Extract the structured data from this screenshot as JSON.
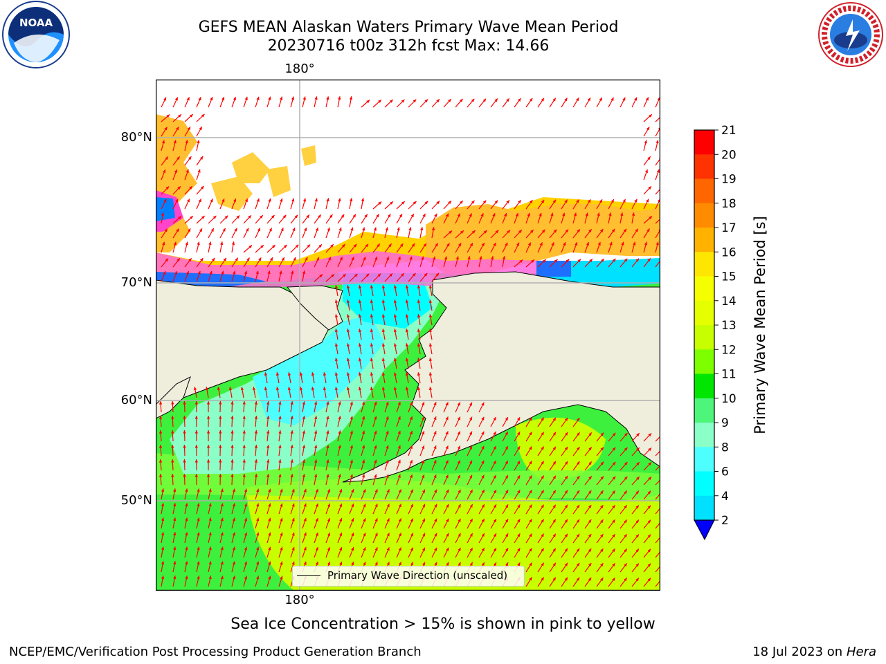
{
  "title": {
    "line1": "GEFS MEAN Alaskan Waters Primary Wave Mean Period",
    "line2": "20230716 t00z 312h fcst   Max: 14.66"
  },
  "map": {
    "lon_label_top": "180°",
    "lon_label_bottom": "180°",
    "lat_labels": [
      "80°N",
      "70°N",
      "60°N",
      "50°N"
    ],
    "land_color": "#efeddc",
    "gridline_color": "#b0b0b0",
    "arrow_color": "#ff0000",
    "legend_label": "Primary Wave Direction (unscaled)"
  },
  "colorbar": {
    "title": "Primary Wave Mean Period [s]",
    "ticks": [
      "21",
      "20",
      "19",
      "18",
      "17",
      "16",
      "15",
      "14",
      "13",
      "12",
      "11",
      "10",
      "9",
      "8",
      "6",
      "4",
      "2"
    ],
    "colors": [
      "#ff0000",
      "#ff3300",
      "#ff6600",
      "#ff8c00",
      "#ffb300",
      "#ffe600",
      "#f5ff00",
      "#e6ff00",
      "#c8ff00",
      "#7dff00",
      "#00e600",
      "#4df57a",
      "#8affc8",
      "#4dffff",
      "#00ffff",
      "#00e0ff",
      "#0080ff"
    ],
    "extend_color": "#0000ff"
  },
  "footer": {
    "ice_note": "Sea Ice Concentration > 15% is shown in pink to yellow",
    "producer": "NCEP/EMC/Verification Post Processing Product Generation Branch",
    "date": "18 Jul 2023 on",
    "host": "Hera"
  },
  "logos": {
    "noaa_text": "NOAA",
    "nws_text": "NATIONAL WEATHER SERVICE"
  }
}
